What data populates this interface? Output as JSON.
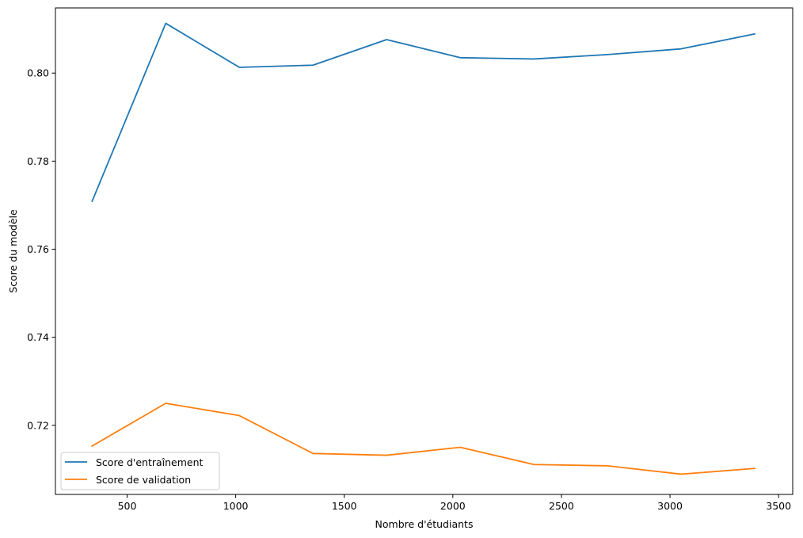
{
  "chart_data": {
    "type": "line",
    "title": "",
    "xlabel": "Nombre d'étudiants",
    "ylabel": "Score du modèle",
    "xlim": [
      170,
      3565
    ],
    "ylim": [
      0.7043,
      0.8148
    ],
    "xticks": [
      500,
      1000,
      1500,
      2000,
      2500,
      3000,
      3500
    ],
    "xtick_labels": [
      "500",
      "1000",
      "1500",
      "2000",
      "2500",
      "3000",
      "3500"
    ],
    "yticks": [
      0.72,
      0.74,
      0.76,
      0.78,
      0.8
    ],
    "ytick_labels": [
      "0.72",
      "0.74",
      "0.76",
      "0.78",
      "0.80"
    ],
    "grid": false,
    "legend_position": "lower-left",
    "x": [
      339,
      678,
      1017,
      1356,
      1695,
      2034,
      2373,
      2712,
      3051,
      3390
    ],
    "series": [
      {
        "name": "Score d'entraînement",
        "color": "#1f77b4",
        "values": [
          0.7709,
          0.8113,
          0.8013,
          0.8018,
          0.8076,
          0.8035,
          0.8032,
          0.8042,
          0.8055,
          0.8089
        ]
      },
      {
        "name": "Score de validation",
        "color": "#ff7f0e",
        "values": [
          0.7153,
          0.725,
          0.7222,
          0.7136,
          0.7132,
          0.715,
          0.7111,
          0.7108,
          0.7089,
          0.7102
        ]
      }
    ]
  }
}
